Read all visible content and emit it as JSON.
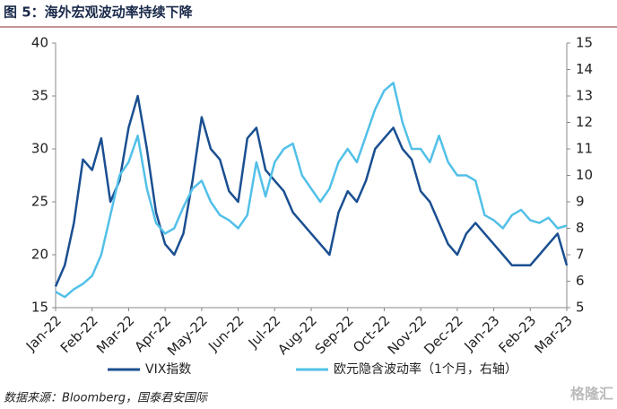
{
  "chart_data": {
    "type": "line",
    "title": "图 5：海外宏观波动率持续下降",
    "source": "数据来源：Bloomberg，国泰君安国际",
    "watermark": "格隆汇",
    "categories": [
      "Jan-22",
      null,
      null,
      null,
      "Feb-22",
      null,
      null,
      null,
      "Mar-22",
      null,
      null,
      null,
      "Apr-22",
      null,
      null,
      null,
      "May-22",
      null,
      null,
      null,
      "Jun-22",
      null,
      null,
      null,
      "Jul-22",
      null,
      null,
      null,
      "Aug-22",
      null,
      null,
      null,
      "Sep-22",
      null,
      null,
      null,
      "Oct-22",
      null,
      null,
      null,
      "Nov-22",
      null,
      null,
      null,
      "Dec-22",
      null,
      null,
      null,
      "Jan-23",
      null,
      null,
      null,
      "Feb-23",
      null,
      null,
      null,
      "Mar-23"
    ],
    "series": [
      {
        "name": "VIX指数",
        "color": "#1a4f91",
        "values": [
          17,
          19,
          23,
          29,
          28,
          31,
          25,
          27,
          32,
          35,
          30,
          24,
          21,
          20,
          22,
          27,
          33,
          30,
          29,
          26,
          25,
          31,
          32,
          28,
          27,
          26,
          24,
          23,
          22,
          21,
          20,
          24,
          26,
          25,
          27,
          30,
          31,
          32,
          30,
          29,
          26,
          25,
          23,
          21,
          20,
          22,
          23,
          22,
          21,
          20,
          19,
          19,
          19,
          20,
          21,
          22,
          19
        ]
      },
      {
        "name": "欧元隐含波动率（1个月，右轴）",
        "color": "#52c0e8",
        "axis": "y2",
        "values": [
          5.6,
          5.4,
          5.7,
          5.9,
          6.2,
          7.0,
          8.5,
          10.0,
          10.5,
          11.5,
          9.5,
          8.2,
          7.8,
          8.0,
          8.8,
          9.5,
          9.8,
          9.0,
          8.5,
          8.3,
          8.0,
          8.5,
          10.5,
          9.2,
          10.5,
          11.0,
          11.2,
          10.0,
          9.5,
          9.0,
          9.5,
          10.5,
          11.0,
          10.5,
          11.5,
          12.5,
          13.2,
          13.5,
          12.0,
          11.0,
          11.0,
          10.5,
          11.5,
          10.5,
          10.0,
          10.0,
          9.8,
          8.5,
          8.3,
          8.0,
          8.5,
          8.7,
          8.3,
          8.2,
          8.4,
          8.0,
          8.1
        ]
      }
    ],
    "ylim": [
      15,
      40
    ],
    "yticks": [
      15,
      20,
      25,
      30,
      35,
      40
    ],
    "y2lim": [
      5,
      15
    ],
    "y2ticks": [
      5,
      6,
      7,
      8,
      9,
      10,
      11,
      12,
      13,
      14,
      15
    ],
    "legend": "bottom"
  }
}
